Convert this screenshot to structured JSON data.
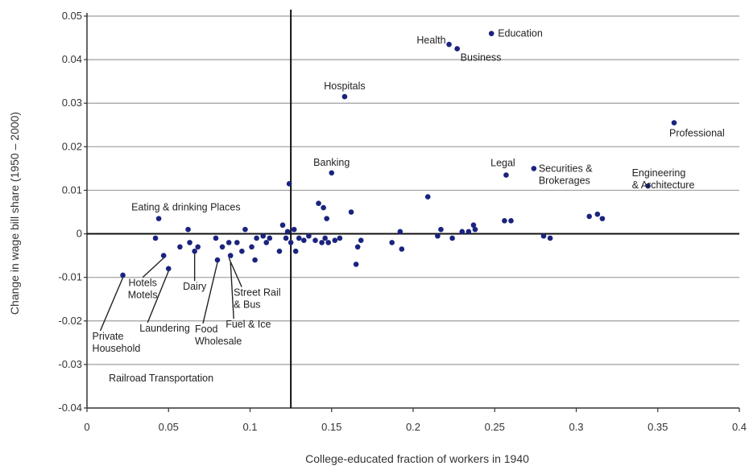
{
  "chart_data": {
    "type": "scatter",
    "xlabel": "College-educated fraction of workers in 1940",
    "ylabel": "Change in wage bill share (1950 – 2000)",
    "xlim": [
      0,
      0.4
    ],
    "ylim": [
      -0.04,
      0.05
    ],
    "x_ticks": [
      "0",
      "0.05",
      "0.1",
      "0.15",
      "0.2",
      "0.25",
      "0.3",
      "0.35",
      "0.4"
    ],
    "y_ticks": [
      "0.05",
      "0.04",
      "0.03",
      "0.02",
      "0.01",
      "0",
      "-0.01",
      "-0.02",
      "-0.03",
      "-0.04"
    ],
    "grid": "horizontal",
    "reference_vline_x": 0.125,
    "marker_color": "#1a237e",
    "points": [
      {
        "x": 0.042,
        "y": -0.001
      },
      {
        "x": 0.044,
        "y": 0.0035
      },
      {
        "x": 0.047,
        "y": -0.005
      },
      {
        "x": 0.022,
        "y": -0.0095
      },
      {
        "x": 0.05,
        "y": -0.008
      },
      {
        "x": 0.057,
        "y": -0.003
      },
      {
        "x": 0.062,
        "y": 0.001
      },
      {
        "x": 0.063,
        "y": -0.002
      },
      {
        "x": 0.066,
        "y": -0.004
      },
      {
        "x": 0.068,
        "y": -0.003
      },
      {
        "x": 0.079,
        "y": -0.001
      },
      {
        "x": 0.08,
        "y": -0.006
      },
      {
        "x": 0.083,
        "y": -0.003
      },
      {
        "x": 0.087,
        "y": -0.002
      },
      {
        "x": 0.088,
        "y": -0.005
      },
      {
        "x": 0.092,
        "y": -0.002
      },
      {
        "x": 0.095,
        "y": -0.004
      },
      {
        "x": 0.097,
        "y": 0.001
      },
      {
        "x": 0.101,
        "y": -0.003
      },
      {
        "x": 0.103,
        "y": -0.006
      },
      {
        "x": 0.104,
        "y": -0.001
      },
      {
        "x": 0.108,
        "y": -0.0005
      },
      {
        "x": 0.11,
        "y": -0.002
      },
      {
        "x": 0.112,
        "y": -0.001
      },
      {
        "x": 0.118,
        "y": -0.004
      },
      {
        "x": 0.12,
        "y": 0.002
      },
      {
        "x": 0.122,
        "y": -0.001
      },
      {
        "x": 0.123,
        "y": 0.0005
      },
      {
        "x": 0.124,
        "y": 0.0115
      },
      {
        "x": 0.125,
        "y": -0.002
      },
      {
        "x": 0.127,
        "y": 0.001
      },
      {
        "x": 0.128,
        "y": -0.004
      },
      {
        "x": 0.13,
        "y": -0.001
      },
      {
        "x": 0.133,
        "y": -0.0015
      },
      {
        "x": 0.136,
        "y": -0.0005
      },
      {
        "x": 0.14,
        "y": -0.0015
      },
      {
        "x": 0.142,
        "y": 0.007
      },
      {
        "x": 0.144,
        "y": -0.002
      },
      {
        "x": 0.145,
        "y": 0.006
      },
      {
        "x": 0.146,
        "y": -0.001
      },
      {
        "x": 0.147,
        "y": 0.0035
      },
      {
        "x": 0.148,
        "y": -0.002
      },
      {
        "x": 0.15,
        "y": 0.014
      },
      {
        "x": 0.152,
        "y": -0.0015
      },
      {
        "x": 0.155,
        "y": -0.001
      },
      {
        "x": 0.158,
        "y": 0.0315
      },
      {
        "x": 0.162,
        "y": 0.005
      },
      {
        "x": 0.165,
        "y": -0.007
      },
      {
        "x": 0.166,
        "y": -0.003
      },
      {
        "x": 0.168,
        "y": -0.0015
      },
      {
        "x": 0.187,
        "y": -0.002
      },
      {
        "x": 0.192,
        "y": 0.0005
      },
      {
        "x": 0.193,
        "y": -0.0035
      },
      {
        "x": 0.209,
        "y": 0.0085
      },
      {
        "x": 0.215,
        "y": -0.0005
      },
      {
        "x": 0.217,
        "y": 0.001
      },
      {
        "x": 0.222,
        "y": 0.0435
      },
      {
        "x": 0.224,
        "y": -0.001
      },
      {
        "x": 0.227,
        "y": 0.0425
      },
      {
        "x": 0.23,
        "y": 0.0005
      },
      {
        "x": 0.234,
        "y": 0.0005
      },
      {
        "x": 0.237,
        "y": 0.002
      },
      {
        "x": 0.238,
        "y": 0.001
      },
      {
        "x": 0.248,
        "y": 0.046
      },
      {
        "x": 0.256,
        "y": 0.003
      },
      {
        "x": 0.257,
        "y": 0.0135
      },
      {
        "x": 0.26,
        "y": 0.003
      },
      {
        "x": 0.274,
        "y": 0.015
      },
      {
        "x": 0.28,
        "y": -0.0005
      },
      {
        "x": 0.284,
        "y": -0.001
      },
      {
        "x": 0.308,
        "y": 0.004
      },
      {
        "x": 0.313,
        "y": 0.0045
      },
      {
        "x": 0.316,
        "y": 0.0035
      },
      {
        "x": 0.344,
        "y": 0.011
      },
      {
        "x": 0.36,
        "y": 0.0255
      }
    ],
    "annotations": [
      {
        "lines": [
          "Health"
        ],
        "x": 0.222,
        "y": 0.0445,
        "anchor": "end",
        "dx": -4,
        "dy": 4
      },
      {
        "lines": [
          "Education"
        ],
        "x": 0.248,
        "y": 0.046,
        "anchor": "start",
        "dx": 8,
        "dy": 4
      },
      {
        "lines": [
          "Business"
        ],
        "x": 0.227,
        "y": 0.0425,
        "anchor": "start",
        "dx": 4,
        "dy": 15
      },
      {
        "lines": [
          "Hospitals"
        ],
        "x": 0.158,
        "y": 0.0315,
        "anchor": "middle",
        "dx": 0,
        "dy": -9
      },
      {
        "lines": [
          "Professional"
        ],
        "x": 0.36,
        "y": 0.0255,
        "anchor": "start",
        "dx": -6,
        "dy": 17
      },
      {
        "lines": [
          "Legal"
        ],
        "x": 0.257,
        "y": 0.0135,
        "anchor": "middle",
        "dx": -4,
        "dy": -11
      },
      {
        "lines": [
          "Securities &",
          "Brokerages"
        ],
        "x": 0.274,
        "y": 0.015,
        "anchor": "start",
        "dx": 6,
        "dy": 4
      },
      {
        "lines": [
          "Engineering",
          "& Architecture"
        ],
        "x": 0.344,
        "y": 0.011,
        "anchor": "start",
        "dx": -20,
        "dy": -12
      },
      {
        "lines": [
          "Banking"
        ],
        "x": 0.15,
        "y": 0.014,
        "anchor": "middle",
        "dx": 0,
        "dy": -9
      },
      {
        "lines": [
          "Eating & drinking Places"
        ],
        "x": 0.044,
        "y": 0.0035,
        "anchor": "start",
        "dx": -34,
        "dy": -10
      },
      {
        "lines": [
          "Private",
          "Household"
        ],
        "x": 0.022,
        "y": -0.0095,
        "anchor": "start",
        "dx": -38,
        "dy": 80,
        "leader": true
      },
      {
        "lines": [
          "Hotels",
          "Motels"
        ],
        "x": 0.047,
        "y": -0.005,
        "anchor": "middle",
        "dx": -26,
        "dy": 38,
        "leader": true
      },
      {
        "lines": [
          "Laundering"
        ],
        "x": 0.05,
        "y": -0.008,
        "anchor": "start",
        "dx": -36,
        "dy": 78,
        "leader": true
      },
      {
        "lines": [
          "Dairy"
        ],
        "x": 0.066,
        "y": -0.004,
        "anchor": "middle",
        "dx": 0,
        "dy": 48,
        "leader": true
      },
      {
        "lines": [
          "Food",
          "Wholesale"
        ],
        "x": 0.08,
        "y": -0.006,
        "anchor": "start",
        "dx": -28,
        "dy": 90,
        "leader": true
      },
      {
        "lines": [
          "Street Rail",
          "& Bus"
        ],
        "x": 0.087,
        "y": -0.005,
        "anchor": "start",
        "dx": 6,
        "dy": 50,
        "leader": true
      },
      {
        "lines": [
          "Fuel & Ice"
        ],
        "x": 0.088,
        "y": -0.006,
        "anchor": "start",
        "dx": -6,
        "dy": 84,
        "leader": true
      },
      {
        "lines": [
          "Railroad Transportation"
        ],
        "x": 0.045,
        "y": -0.0365,
        "anchor": "start",
        "dx": -64,
        "dy": -14
      }
    ]
  }
}
